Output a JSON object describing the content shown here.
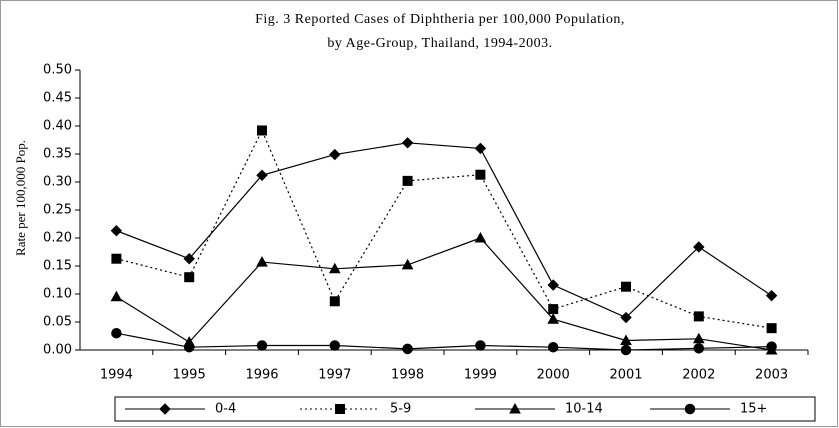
{
  "chart_data": {
    "type": "line",
    "title": [
      "Fig. 3  Reported Cases of Diphtheria per 100,000 Population,",
      "by Age-Group, Thailand, 1994-2003."
    ],
    "ylabel": "Rate per 100,000 Pop.",
    "categories": [
      "1994",
      "1995",
      "1996",
      "1997",
      "1998",
      "1999",
      "2000",
      "2001",
      "2002",
      "2003"
    ],
    "series": [
      {
        "name": "0-4",
        "color": "#000000",
        "marker": "diamond",
        "dash": "solid",
        "values": [
          0.213,
          0.163,
          0.312,
          0.349,
          0.37,
          0.36,
          0.116,
          0.058,
          0.184,
          0.097
        ]
      },
      {
        "name": "5-9",
        "color": "#000000",
        "marker": "square",
        "dash": "dotted",
        "values": [
          0.163,
          0.13,
          0.392,
          0.087,
          0.302,
          0.313,
          0.073,
          0.113,
          0.06,
          0.039
        ]
      },
      {
        "name": "10-14",
        "color": "#000000",
        "marker": "triangle",
        "dash": "solid",
        "values": [
          0.095,
          0.014,
          0.157,
          0.145,
          0.152,
          0.2,
          0.055,
          0.017,
          0.02,
          0.0
        ]
      },
      {
        "name": "15+",
        "color": "#000000",
        "marker": "circle",
        "dash": "solid",
        "values": [
          0.03,
          0.005,
          0.008,
          0.008,
          0.002,
          0.008,
          0.005,
          0.0,
          0.003,
          0.006
        ]
      }
    ],
    "ylim": [
      0,
      0.5
    ],
    "yticks": [
      {
        "value": 0,
        "label": "0.00"
      },
      0.05,
      {
        "value": 0.1,
        "label": "0.10"
      },
      0.15,
      {
        "value": 0.2,
        "label": "0.20"
      },
      0.25,
      {
        "value": 0.3,
        "label": "0.30"
      },
      0.35,
      {
        "value": 0.4,
        "label": "0.40"
      },
      0.45,
      {
        "value": 0.5,
        "label": "0.50"
      }
    ],
    "grid": false,
    "legend": "bottom"
  }
}
